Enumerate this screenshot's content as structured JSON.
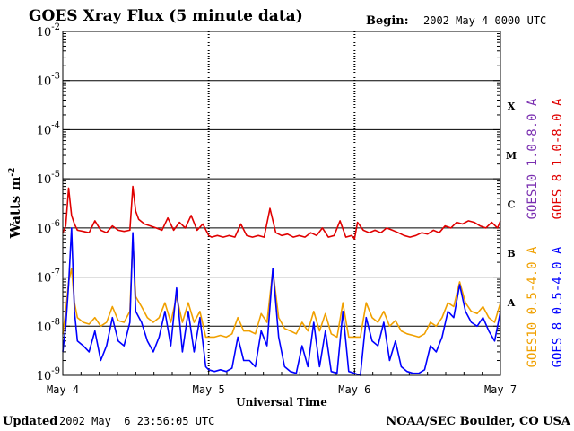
{
  "chart_data": {
    "type": "line",
    "title": "GOES Xray Flux (5 minute data)",
    "begin_label": "Begin:",
    "begin_value": "2002 May 4 0000 UTC",
    "xlabel": "Universal Time",
    "ylabel_main": "Watts m",
    "ylabel_exp": "-2",
    "y_scale": "log",
    "ylim": [
      1e-09,
      0.01
    ],
    "x_range_days": [
      0,
      3
    ],
    "y_ticks": [
      {
        "base": "10",
        "exp": "-2",
        "value": 0.01
      },
      {
        "base": "10",
        "exp": "-3",
        "value": 0.001
      },
      {
        "base": "10",
        "exp": "-4",
        "value": 0.0001
      },
      {
        "base": "10",
        "exp": "-5",
        "value": 1e-05
      },
      {
        "base": "10",
        "exp": "-6",
        "value": 1e-06
      },
      {
        "base": "10",
        "exp": "-7",
        "value": 1e-07
      },
      {
        "base": "10",
        "exp": "-8",
        "value": 1e-08
      },
      {
        "base": "10",
        "exp": "-9",
        "value": 1e-09
      }
    ],
    "x_ticks": [
      {
        "label": "May 4",
        "day": 0
      },
      {
        "label": "May 5",
        "day": 1
      },
      {
        "label": "May 6",
        "day": 2
      },
      {
        "label": "May 7",
        "day": 3
      }
    ],
    "flare_classes": [
      {
        "label": "X",
        "value": 0.0001
      },
      {
        "label": "M",
        "value": 1e-05
      },
      {
        "label": "C",
        "value": 1e-06
      },
      {
        "label": "B",
        "value": 1e-07
      },
      {
        "label": "A",
        "value": 1e-08
      }
    ],
    "grid_lines": [
      0.001,
      0.0001,
      1e-05,
      1e-06,
      1e-07,
      1e-08
    ],
    "legend_long": [
      {
        "name": "GOES10 1.0-8.0 A",
        "color": "#7a2fb0"
      },
      {
        "name": "GOES 8 1.0-8.0 A",
        "color": "#e00000"
      }
    ],
    "legend_short": [
      {
        "name": "GOES10 0.5-4.0 A",
        "color": "#f0a000"
      },
      {
        "name": "GOES 8 0.5-4.0 A",
        "color": "#0000ff"
      }
    ],
    "series": [
      {
        "name": "GOES 8 1.0-8.0 A",
        "color": "#e00000",
        "x": [
          0,
          0.02,
          0.04,
          0.06,
          0.08,
          0.1,
          0.14,
          0.18,
          0.22,
          0.26,
          0.3,
          0.34,
          0.38,
          0.42,
          0.46,
          0.48,
          0.5,
          0.52,
          0.56,
          0.6,
          0.64,
          0.68,
          0.72,
          0.76,
          0.8,
          0.84,
          0.88,
          0.92,
          0.96,
          1.0,
          1.02,
          1.06,
          1.1,
          1.14,
          1.18,
          1.22,
          1.26,
          1.3,
          1.34,
          1.38,
          1.42,
          1.46,
          1.5,
          1.54,
          1.58,
          1.62,
          1.66,
          1.7,
          1.74,
          1.78,
          1.82,
          1.86,
          1.9,
          1.94,
          1.98,
          2.0,
          2.02,
          2.06,
          2.1,
          2.14,
          2.18,
          2.22,
          2.26,
          2.3,
          2.34,
          2.38,
          2.42,
          2.46,
          2.5,
          2.54,
          2.58,
          2.62,
          2.66,
          2.7,
          2.74,
          2.78,
          2.82,
          2.86,
          2.9,
          2.94,
          2.98,
          3.0
        ],
        "values": [
          8e-07,
          1.1e-06,
          6.5e-06,
          1.8e-06,
          1.2e-06,
          9e-07,
          8.5e-07,
          8e-07,
          1.4e-06,
          9e-07,
          8e-07,
          1.1e-06,
          9e-07,
          8.5e-07,
          9e-07,
          7e-06,
          2.2e-06,
          1.5e-06,
          1.2e-06,
          1.1e-06,
          1e-06,
          9e-07,
          1.6e-06,
          9e-07,
          1.3e-06,
          1e-06,
          1.8e-06,
          9e-07,
          1.2e-06,
          7e-07,
          6.5e-07,
          7e-07,
          6.5e-07,
          7e-07,
          6.5e-07,
          1.2e-06,
          7e-07,
          6.5e-07,
          7e-07,
          6.5e-07,
          2.5e-06,
          8e-07,
          7e-07,
          7.5e-07,
          6.5e-07,
          7e-07,
          6.5e-07,
          8e-07,
          7e-07,
          1e-06,
          6.5e-07,
          7e-07,
          1.4e-06,
          6.5e-07,
          7e-07,
          6e-07,
          1.3e-06,
          9e-07,
          8e-07,
          9e-07,
          8e-07,
          1e-06,
          9e-07,
          8e-07,
          7e-07,
          6.5e-07,
          7e-07,
          8e-07,
          7.5e-07,
          9e-07,
          8e-07,
          1.1e-06,
          1e-06,
          1.3e-06,
          1.2e-06,
          1.4e-06,
          1.3e-06,
          1.1e-06,
          1e-06,
          1.3e-06,
          1e-06,
          1.4e-06
        ]
      },
      {
        "name": "GOES10 0.5-4.0 A",
        "color": "#f0a000",
        "x": [
          0,
          0.02,
          0.04,
          0.06,
          0.08,
          0.1,
          0.14,
          0.18,
          0.22,
          0.26,
          0.3,
          0.34,
          0.38,
          0.42,
          0.46,
          0.48,
          0.5,
          0.54,
          0.58,
          0.62,
          0.66,
          0.7,
          0.74,
          0.78,
          0.82,
          0.86,
          0.9,
          0.94,
          0.98,
          1.0,
          1.04,
          1.08,
          1.12,
          1.16,
          1.2,
          1.24,
          1.28,
          1.32,
          1.36,
          1.4,
          1.44,
          1.48,
          1.52,
          1.56,
          1.6,
          1.64,
          1.68,
          1.72,
          1.76,
          1.8,
          1.84,
          1.88,
          1.92,
          1.96,
          2.0,
          2.04,
          2.08,
          2.12,
          2.16,
          2.2,
          2.24,
          2.28,
          2.32,
          2.36,
          2.4,
          2.44,
          2.48,
          2.52,
          2.56,
          2.6,
          2.64,
          2.68,
          2.72,
          2.76,
          2.8,
          2.84,
          2.88,
          2.92,
          2.96,
          3.0
        ],
        "values": [
          7e-09,
          2e-08,
          8e-08,
          1.5e-07,
          3e-08,
          1.5e-08,
          1.2e-08,
          1.1e-08,
          1.5e-08,
          1e-08,
          1.2e-08,
          2.5e-08,
          1.3e-08,
          1.2e-08,
          2e-08,
          6e-07,
          4e-08,
          2.5e-08,
          1.5e-08,
          1.2e-08,
          1.5e-08,
          3e-08,
          1.2e-08,
          4e-08,
          1.2e-08,
          3e-08,
          1.2e-08,
          2e-08,
          6e-09,
          6e-09,
          6e-09,
          6.5e-09,
          6e-09,
          7e-09,
          1.5e-08,
          8e-09,
          8e-09,
          7e-09,
          1.8e-08,
          1.2e-08,
          1.4e-07,
          1.5e-08,
          9e-09,
          8e-09,
          7e-09,
          1.2e-08,
          8e-09,
          2e-08,
          8e-09,
          1.8e-08,
          7e-09,
          6e-09,
          3e-08,
          6e-09,
          6e-09,
          6e-09,
          3e-08,
          1.5e-08,
          1.2e-08,
          2e-08,
          1e-08,
          1.3e-08,
          8e-09,
          7e-09,
          6.5e-09,
          6e-09,
          7e-09,
          1.2e-08,
          1e-08,
          1.5e-08,
          3e-08,
          2.5e-08,
          8e-08,
          3e-08,
          2e-08,
          1.8e-08,
          2.5e-08,
          1.5e-08,
          1.2e-08,
          3e-08
        ]
      },
      {
        "name": "GOES 8 0.5-4.0 A",
        "color": "#0000ff",
        "x": [
          0,
          0.02,
          0.04,
          0.06,
          0.08,
          0.1,
          0.14,
          0.18,
          0.22,
          0.26,
          0.3,
          0.34,
          0.38,
          0.42,
          0.46,
          0.48,
          0.5,
          0.54,
          0.58,
          0.62,
          0.66,
          0.7,
          0.74,
          0.78,
          0.82,
          0.86,
          0.9,
          0.94,
          0.98,
          1.0,
          1.04,
          1.08,
          1.12,
          1.16,
          1.2,
          1.24,
          1.28,
          1.32,
          1.36,
          1.4,
          1.44,
          1.48,
          1.52,
          1.56,
          1.6,
          1.64,
          1.68,
          1.72,
          1.76,
          1.8,
          1.84,
          1.88,
          1.92,
          1.96,
          2.0,
          2.04,
          2.08,
          2.12,
          2.16,
          2.2,
          2.24,
          2.28,
          2.32,
          2.36,
          2.4,
          2.44,
          2.48,
          2.52,
          2.56,
          2.6,
          2.64,
          2.68,
          2.72,
          2.76,
          2.8,
          2.84,
          2.88,
          2.92,
          2.96,
          3.0
        ],
        "values": [
          3e-09,
          1e-08,
          7e-08,
          1e-06,
          2e-08,
          5e-09,
          4e-09,
          3e-09,
          8e-09,
          2e-09,
          4e-09,
          1.5e-08,
          5e-09,
          4e-09,
          1.2e-08,
          8e-07,
          2e-08,
          1.2e-08,
          5e-09,
          3e-09,
          6e-09,
          2e-08,
          4e-09,
          6e-08,
          3e-09,
          2e-08,
          3e-09,
          1.5e-08,
          1.5e-09,
          1.3e-09,
          1.2e-09,
          1.3e-09,
          1.2e-09,
          1.4e-09,
          6e-09,
          2e-09,
          2e-09,
          1.5e-09,
          8e-09,
          4e-09,
          1.5e-07,
          6e-09,
          1.5e-09,
          1.2e-09,
          1.1e-09,
          4e-09,
          1.5e-09,
          1.2e-08,
          1.5e-09,
          8e-09,
          1.2e-09,
          1.1e-09,
          2e-08,
          1.2e-09,
          1.1e-09,
          1e-09,
          1.5e-08,
          5e-09,
          4e-09,
          1.2e-08,
          2e-09,
          5e-09,
          1.5e-09,
          1.2e-09,
          1.1e-09,
          1.1e-09,
          1.3e-09,
          4e-09,
          3e-09,
          6e-09,
          2e-08,
          1.5e-08,
          7e-08,
          2e-08,
          1.2e-08,
          1e-08,
          1.5e-08,
          8e-09,
          5e-09,
          2e-08
        ]
      }
    ]
  },
  "footer": {
    "updated_label": "Updated",
    "updated_value": "2002 May  6 23:56:05 UTC",
    "credit": "NOAA/SEC Boulder, CO USA"
  }
}
